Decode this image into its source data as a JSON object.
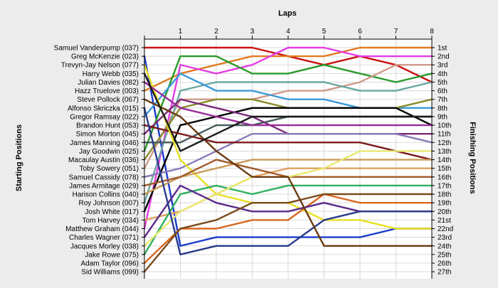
{
  "chart_data": {
    "type": "line",
    "title": "",
    "xlabel": "Laps",
    "ylabel_left": "Starting Positions",
    "ylabel_right": "Finishing Positions",
    "x": [
      0,
      1,
      2,
      3,
      4,
      5,
      6,
      7,
      8
    ],
    "x_tick_labels": [
      "1",
      "2",
      "3",
      "4",
      "5",
      "6",
      "7",
      "8"
    ],
    "ylim": [
      1,
      27
    ],
    "grid": true,
    "start_labels": [
      "Samuel Vanderpump (037)",
      "Greg McKenzie (023)",
      "Trevyn-Jay Nelson (077)",
      "Harry Webb (035)",
      "Julian Davies (082)",
      "Hazz Truelove (003)",
      "Steve Pollock (067)",
      "Alfonso Skriczka (015)",
      "Gregor Ramsay (022)",
      "Brandon Hunt (053)",
      "Simon Morton (045)",
      "James Manning (046)",
      "Jay Goodwin (025)",
      "Macaulay Austin (036)",
      "Toby Sowery (051)",
      "Samuel Cassidy (078)",
      "James Armitage (029)",
      "Harison Collins (040)",
      "Roy Johnson (007)",
      "Josh White (017)",
      "Tom Harvey (034)",
      "Matthew Graham (044)",
      "Charles Wagner (071)",
      "Jacques Morley (038)",
      "Jake Rowe (075)",
      "Adam Taylor (096)",
      "Sid Williams (099)"
    ],
    "finish_labels": [
      "1st",
      "2nd",
      "3rd",
      "4th",
      "5th",
      "6th",
      "7th",
      "8th",
      "9th",
      "10th",
      "11th",
      "12th",
      "13th",
      "14th",
      "15th",
      "16th",
      "17th",
      "18th",
      "19th",
      "20th",
      "21st",
      "22nd",
      "23rd",
      "24th",
      "25th",
      "26th",
      "27th"
    ],
    "series": [
      {
        "color": "#cc1111",
        "values": [
          1,
          1,
          1,
          1,
          2,
          3,
          2,
          3,
          5
        ]
      },
      {
        "color": "#1a3ccc",
        "values": [
          2,
          24,
          23,
          23,
          23,
          23,
          23,
          22,
          22
        ]
      },
      {
        "color": "#e07b22",
        "values": [
          6,
          4,
          3,
          2,
          2,
          2,
          1,
          1,
          1
        ]
      },
      {
        "color": "#e43de4",
        "values": [
          22,
          3,
          4,
          3,
          1,
          1,
          2,
          2,
          2
        ]
      },
      {
        "color": "#2a9a2a",
        "values": [
          13,
          2,
          2,
          4,
          4,
          3,
          4,
          5,
          4
        ]
      },
      {
        "color": "#cf9a8a",
        "values": [
          15,
          7,
          7,
          7,
          6,
          6,
          5,
          3,
          3
        ]
      },
      {
        "color": "#6aa8a0",
        "values": [
          19,
          6,
          5,
          5,
          5,
          5,
          6,
          6,
          5
        ]
      },
      {
        "color": "#3a9ad8",
        "values": [
          9,
          4,
          6,
          6,
          7,
          7,
          8,
          8,
          8
        ]
      },
      {
        "color": "#8a8a2a",
        "values": [
          14,
          8,
          7,
          7,
          8,
          8,
          8,
          8,
          7
        ]
      },
      {
        "color": "#000000",
        "values": [
          20,
          10,
          9,
          8,
          8,
          8,
          8,
          8,
          10
        ]
      },
      {
        "color": "#445a5a",
        "values": [
          12,
          12,
          10,
          10,
          9,
          9,
          9,
          9,
          9
        ]
      },
      {
        "color": "#7a2a7a",
        "values": [
          11,
          7,
          8,
          9,
          11,
          11,
          11,
          11,
          11
        ]
      },
      {
        "color": "#8a7ab8",
        "values": [
          16,
          15,
          13,
          11,
          11,
          11,
          11,
          11,
          12
        ]
      },
      {
        "color": "#7a1a1a",
        "values": [
          10,
          11,
          12,
          12,
          12,
          12,
          12,
          13,
          14
        ]
      },
      {
        "color": "#e8e020",
        "values": [
          3,
          14,
          18,
          19,
          19,
          21,
          21,
          22,
          22
        ]
      },
      {
        "color": "#c89a58",
        "values": [
          18,
          16,
          15,
          14,
          14,
          14,
          14,
          14,
          14
        ]
      },
      {
        "color": "#e0a060",
        "values": [
          21,
          20,
          18,
          16,
          15,
          15,
          15,
          15,
          15
        ]
      },
      {
        "color": "#a05a2a",
        "values": [
          17,
          16,
          14,
          15,
          16,
          16,
          16,
          16,
          16
        ]
      },
      {
        "color": "#30b060",
        "values": [
          25,
          18,
          17,
          18,
          17,
          17,
          17,
          17,
          17
        ]
      },
      {
        "color": "#e8e870",
        "values": [
          24,
          20,
          18,
          16,
          16,
          15,
          13,
          13,
          13
        ]
      },
      {
        "color": "#d86820",
        "values": [
          26,
          22,
          22,
          21,
          21,
          18,
          19,
          19,
          19
        ]
      },
      {
        "color": "#5a2a8a",
        "values": [
          23,
          17,
          19,
          20,
          20,
          19,
          20,
          20,
          20
        ]
      },
      {
        "color": "#2a3a8a",
        "values": [
          8,
          25,
          24,
          24,
          24,
          21,
          20,
          20,
          20
        ]
      },
      {
        "color": "#7a4a1a",
        "values": [
          27,
          22,
          21,
          19,
          19,
          18,
          18,
          18,
          18
        ]
      },
      {
        "color": "#6a3a10",
        "values": [
          7,
          9,
          13,
          16,
          16,
          24,
          24,
          24,
          24
        ]
      },
      {
        "color": "#9a2a9a",
        "values": [
          5,
          8,
          9,
          10,
          10,
          10,
          10,
          10,
          10
        ]
      },
      {
        "color": "#1a1a1a",
        "values": [
          4,
          13,
          11,
          9,
          9,
          9,
          9,
          9,
          9
        ]
      }
    ]
  }
}
